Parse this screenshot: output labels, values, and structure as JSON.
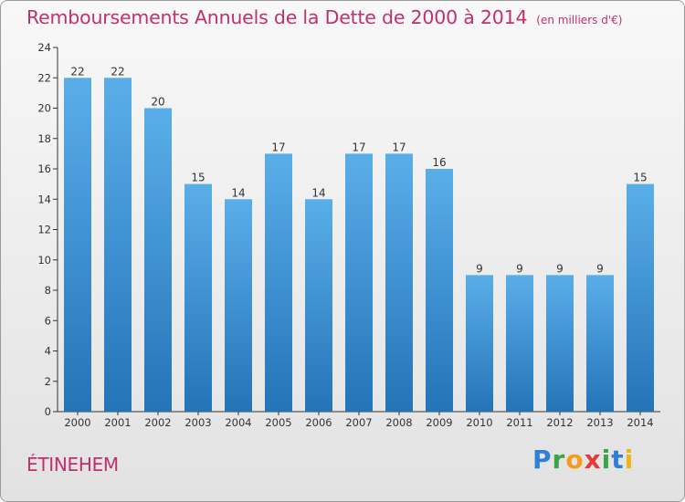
{
  "header": {
    "title": "Remboursements Annuels de la Dette de 2000 à 2014",
    "unit": "(en milliers d'€)"
  },
  "footer": {
    "commune": "ÉTINEHEM",
    "logo_text": "Proxiti"
  },
  "colors": {
    "title": "#c0306e",
    "bar_light": "#5aaee8",
    "bar_dark": "#2374b8",
    "axis": "#333333"
  },
  "chart_data": {
    "type": "bar",
    "categories": [
      "2000",
      "2001",
      "2002",
      "2003",
      "2004",
      "2005",
      "2006",
      "2007",
      "2008",
      "2009",
      "2010",
      "2011",
      "2012",
      "2013",
      "2014"
    ],
    "values": [
      22,
      22,
      20,
      15,
      14,
      17,
      14,
      17,
      17,
      16,
      9,
      9,
      9,
      9,
      15
    ],
    "title": "Remboursements Annuels de la Dette de 2000 à 2014",
    "ylim": [
      0,
      24
    ],
    "yticks": [
      0,
      2,
      4,
      6,
      8,
      10,
      12,
      14,
      16,
      18,
      20,
      22,
      24
    ],
    "data_labels": true,
    "grid": false
  }
}
